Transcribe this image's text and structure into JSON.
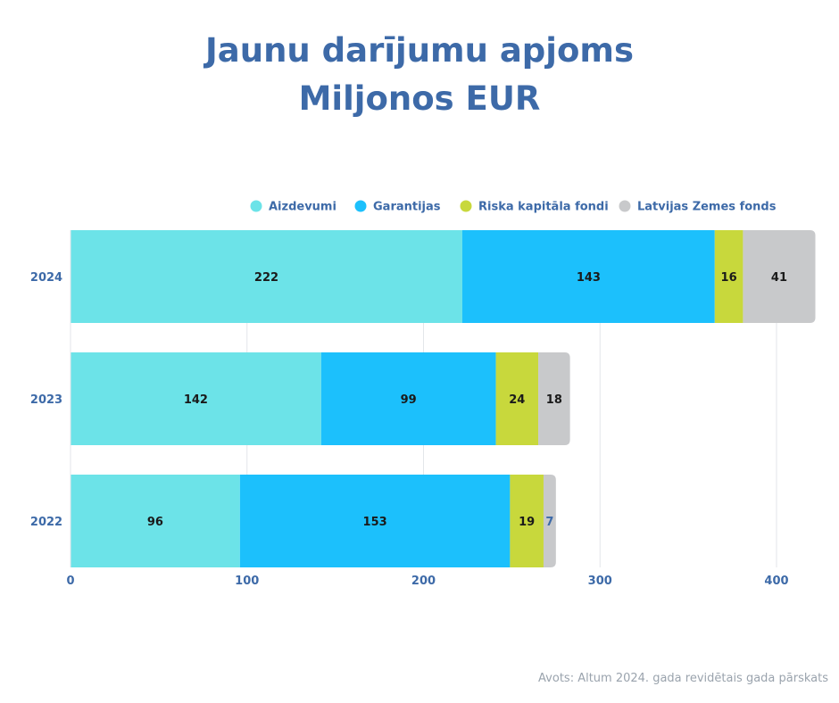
{
  "title": "Jaunu darījumu apjoms",
  "subtitle": "Miljonos EUR",
  "source": "Avots: Altum 2024. gada revidētais gada pārskats",
  "colors": {
    "title": "#3d6aa8",
    "axis_text": "#3d6aa8",
    "grid": "#e3e6ea"
  },
  "chart_data": {
    "type": "bar",
    "orientation": "horizontal",
    "stacked": true,
    "categories": [
      "2024",
      "2023",
      "2022"
    ],
    "series": [
      {
        "name": "Aizdevumi",
        "color": "#6ce3e8",
        "values": [
          222,
          142,
          96
        ]
      },
      {
        "name": "Garantijas",
        "color": "#1cc0fc",
        "values": [
          143,
          99,
          153
        ]
      },
      {
        "name": "Riska kapitāla fondi",
        "color": "#c8d83c",
        "values": [
          16,
          24,
          19
        ]
      },
      {
        "name": "Latvijas Zemes fonds",
        "color": "#c8c9cb",
        "values": [
          41,
          18,
          7
        ]
      }
    ],
    "xlim": [
      0,
      425
    ],
    "xticks": [
      0,
      100,
      200,
      300,
      400
    ],
    "grid": true,
    "legend_position": "top-right"
  }
}
